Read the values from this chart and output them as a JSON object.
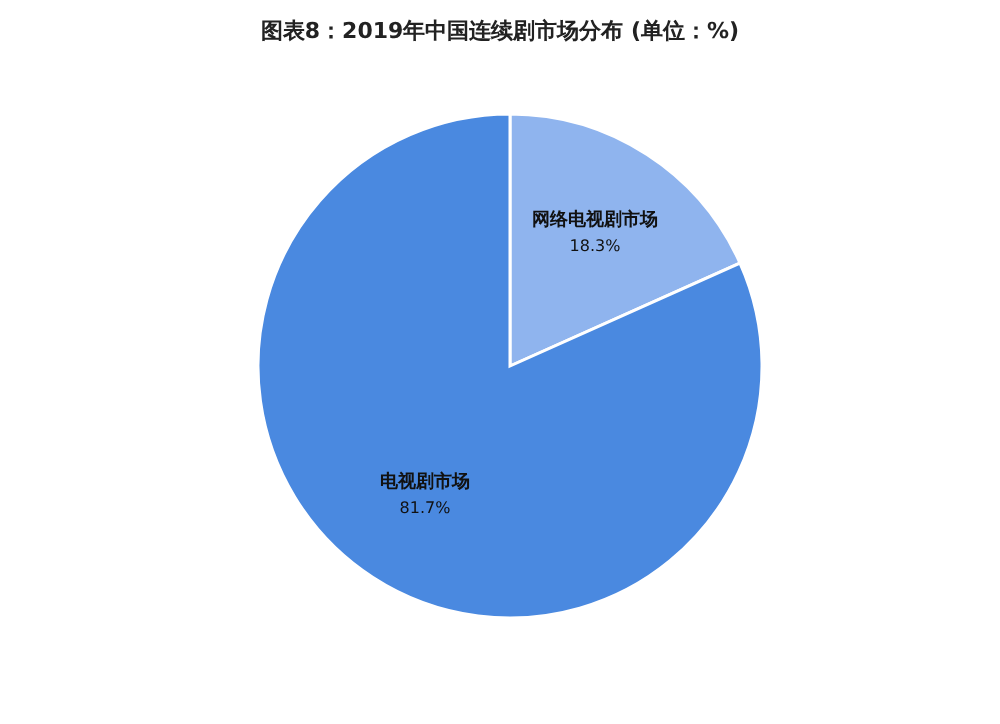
{
  "chart_data": {
    "type": "pie",
    "title": "图表8：2019年中国连续剧市场分布 (单位：%)",
    "categories": [
      "网络电视剧市场",
      "电视剧市场"
    ],
    "values": [
      18.3,
      81.7
    ],
    "colors": [
      "#8fb4ee",
      "#4a89e0"
    ],
    "value_labels": [
      "18.3%",
      "81.7%"
    ],
    "legend": false
  }
}
